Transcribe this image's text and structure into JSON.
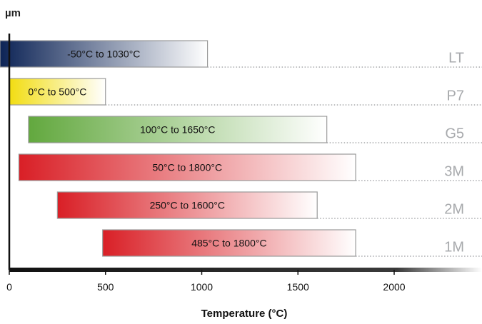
{
  "chart_data": {
    "type": "bar",
    "orientation": "horizontal",
    "unit_label": "µm",
    "xlabel": "Temperature (°C)",
    "xlim": [
      0,
      2400
    ],
    "x_ticks": [
      0,
      500,
      1000,
      1500,
      2000
    ],
    "x_tick_labels": [
      "0",
      "500",
      "1000",
      "1500",
      "2000"
    ],
    "series": [
      {
        "name": "LT",
        "min": -50,
        "max": 1030,
        "label": "-50°C to 1030°C",
        "color_start": "#0d2456",
        "color_end": "#ffffff"
      },
      {
        "name": "P7",
        "min": 0,
        "max": 500,
        "label": "0°C to 500°C",
        "color_start": "#f2dd12",
        "color_end": "#ffffff"
      },
      {
        "name": "G5",
        "min": 100,
        "max": 1650,
        "label": "100°C to 1650°C",
        "color_start": "#62a83e",
        "color_end": "#ffffff"
      },
      {
        "name": "3M",
        "min": 50,
        "max": 1800,
        "label": "50°C to 1800°C",
        "color_start": "#d91f26",
        "color_end": "#ffffff"
      },
      {
        "name": "2M",
        "min": 250,
        "max": 1600,
        "label": "250°C to 1600°C",
        "color_start": "#d91f26",
        "color_end": "#ffffff"
      },
      {
        "name": "1M",
        "min": 485,
        "max": 1800,
        "label": "485°C to 1800°C",
        "color_start": "#d91f26",
        "color_end": "#ffffff"
      }
    ]
  }
}
